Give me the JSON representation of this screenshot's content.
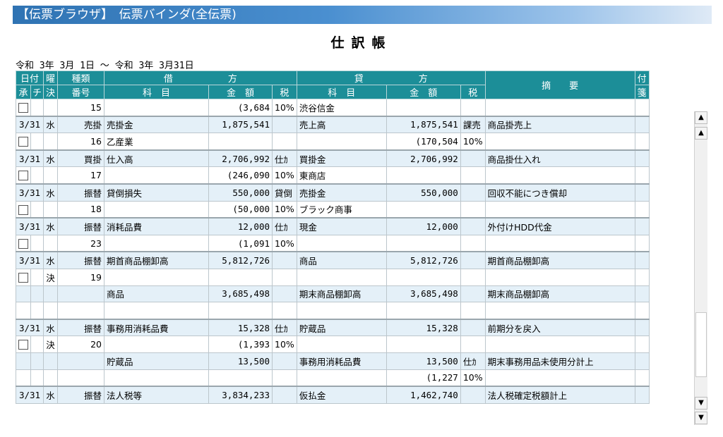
{
  "window": {
    "title": "【伝票ブラウザ】　伝票バインダ(全伝票)"
  },
  "heading": "仕訳帳",
  "period": "令和 3年 3月 1日 ～ 令和 3年 3月31日",
  "headers": {
    "row1": [
      "日付",
      "曜",
      "種類",
      "借",
      "方",
      "貸",
      "方",
      "摘　　要",
      "付"
    ],
    "row2": [
      "承",
      "チ",
      "決",
      "番号",
      "科　目",
      "金　額",
      "税",
      "科　目",
      "金　額",
      "税",
      "箋"
    ]
  },
  "rows": [
    {
      "date": "",
      "dow": "",
      "type": "15",
      "checkbox": true,
      "dAcct": "",
      "dAmt": "(3,684",
      "dTax": "10%",
      "cAcct": "渋谷信金",
      "cAmt": "",
      "cTax": "",
      "memo": "",
      "style": "b",
      "sep": true
    },
    {
      "date": "3/31",
      "dow": "水",
      "type": "売掛",
      "dAcct": "売掛金",
      "dAmt": "1,875,541",
      "dTax": "",
      "cAcct": "売上高",
      "cAmt": "1,875,541",
      "cTax": "課売",
      "memo": "商品掛売上",
      "style": "a"
    },
    {
      "date": "",
      "dow": "",
      "type": "16",
      "checkbox": true,
      "dAcct": "乙産業",
      "dAmt": "",
      "dTax": "",
      "cAcct": "",
      "cAmt": "(170,504",
      "cTax": "10%",
      "memo": "",
      "style": "b",
      "sep": true
    },
    {
      "date": "3/31",
      "dow": "水",
      "type": "買掛",
      "dAcct": "仕入高",
      "dAmt": "2,706,992",
      "dTax": "仕ｶ",
      "cAcct": "買掛金",
      "cAmt": "2,706,992",
      "cTax": "",
      "memo": "商品掛仕入れ",
      "style": "a"
    },
    {
      "date": "",
      "dow": "",
      "type": "17",
      "checkbox": true,
      "dAcct": "",
      "dAmt": "(246,090",
      "dTax": "10%",
      "cAcct": "東商店",
      "cAmt": "",
      "cTax": "",
      "memo": "",
      "style": "b",
      "sep": true
    },
    {
      "date": "3/31",
      "dow": "水",
      "type": "振替",
      "dAcct": "貸倒損失",
      "dAmt": "550,000",
      "dTax": "貸倒",
      "cAcct": "売掛金",
      "cAmt": "550,000",
      "cTax": "",
      "memo": "回収不能につき償却",
      "style": "a"
    },
    {
      "date": "",
      "dow": "",
      "type": "18",
      "checkbox": true,
      "dAcct": "",
      "dAmt": "(50,000",
      "dTax": "10%",
      "cAcct": "ブラック商事",
      "cAmt": "",
      "cTax": "",
      "memo": "",
      "style": "b",
      "sep": true
    },
    {
      "date": "3/31",
      "dow": "水",
      "type": "振替",
      "dAcct": "消耗品費",
      "dAmt": "12,000",
      "dTax": "仕ｶ",
      "cAcct": "現金",
      "cAmt": "12,000",
      "cTax": "",
      "memo": "外付けHDD代金",
      "style": "a"
    },
    {
      "date": "",
      "dow": "",
      "type": "23",
      "checkbox": true,
      "dAcct": "",
      "dAmt": "(1,091",
      "dTax": "10%",
      "cAcct": "",
      "cAmt": "",
      "cTax": "",
      "memo": "",
      "style": "b",
      "sep": true
    },
    {
      "date": "3/31",
      "dow": "水",
      "type": "振替",
      "dAcct": "期首商品棚卸高",
      "dAmt": "5,812,726",
      "dTax": "",
      "cAcct": "商品",
      "cAmt": "5,812,726",
      "cTax": "",
      "memo": "期首商品棚卸高",
      "style": "a"
    },
    {
      "date": "",
      "dow": "決",
      "type": "19",
      "checkbox": true,
      "dAcct": "",
      "dAmt": "",
      "dTax": "",
      "cAcct": "",
      "cAmt": "",
      "cTax": "",
      "memo": "",
      "style": "b"
    },
    {
      "date": "",
      "dow": "",
      "type": "",
      "dAcct": "商品",
      "dAmt": "3,685,498",
      "dTax": "",
      "cAcct": "期末商品棚卸高",
      "cAmt": "3,685,498",
      "cTax": "",
      "memo": "期末商品棚卸高",
      "style": "a"
    },
    {
      "date": "",
      "dow": "",
      "type": "",
      "dAcct": "",
      "dAmt": "",
      "dTax": "",
      "cAcct": "",
      "cAmt": "",
      "cTax": "",
      "memo": "",
      "style": "b",
      "sep": true
    },
    {
      "date": "3/31",
      "dow": "水",
      "type": "振替",
      "dAcct": "事務用消耗品費",
      "dAmt": "15,328",
      "dTax": "仕ｶ",
      "cAcct": "貯蔵品",
      "cAmt": "15,328",
      "cTax": "",
      "memo": "前期分を戻入",
      "style": "a"
    },
    {
      "date": "",
      "dow": "決",
      "type": "20",
      "checkbox": true,
      "dAcct": "",
      "dAmt": "(1,393",
      "dTax": "10%",
      "cAcct": "",
      "cAmt": "",
      "cTax": "",
      "memo": "",
      "style": "b"
    },
    {
      "date": "",
      "dow": "",
      "type": "",
      "dAcct": "貯蔵品",
      "dAmt": "13,500",
      "dTax": "",
      "cAcct": "事務用消耗品費",
      "cAmt": "13,500",
      "cTax": "仕ｶ",
      "memo": "期末事務用品未使用分計上",
      "style": "a"
    },
    {
      "date": "",
      "dow": "",
      "type": "",
      "dAcct": "",
      "dAmt": "",
      "dTax": "",
      "cAcct": "",
      "cAmt": "(1,227",
      "cTax": "10%",
      "memo": "",
      "style": "b",
      "sep": true
    },
    {
      "date": "3/31",
      "dow": "水",
      "type": "振替",
      "dAcct": "法人税等",
      "dAmt": "3,834,233",
      "dTax": "",
      "cAcct": "仮払金",
      "cAmt": "1,462,740",
      "cTax": "",
      "memo": "法人税確定税額計上",
      "style": "a"
    }
  ],
  "scrollbar": {
    "top": "▲",
    "up": "▲",
    "down": "▼",
    "bottom": "▼"
  }
}
